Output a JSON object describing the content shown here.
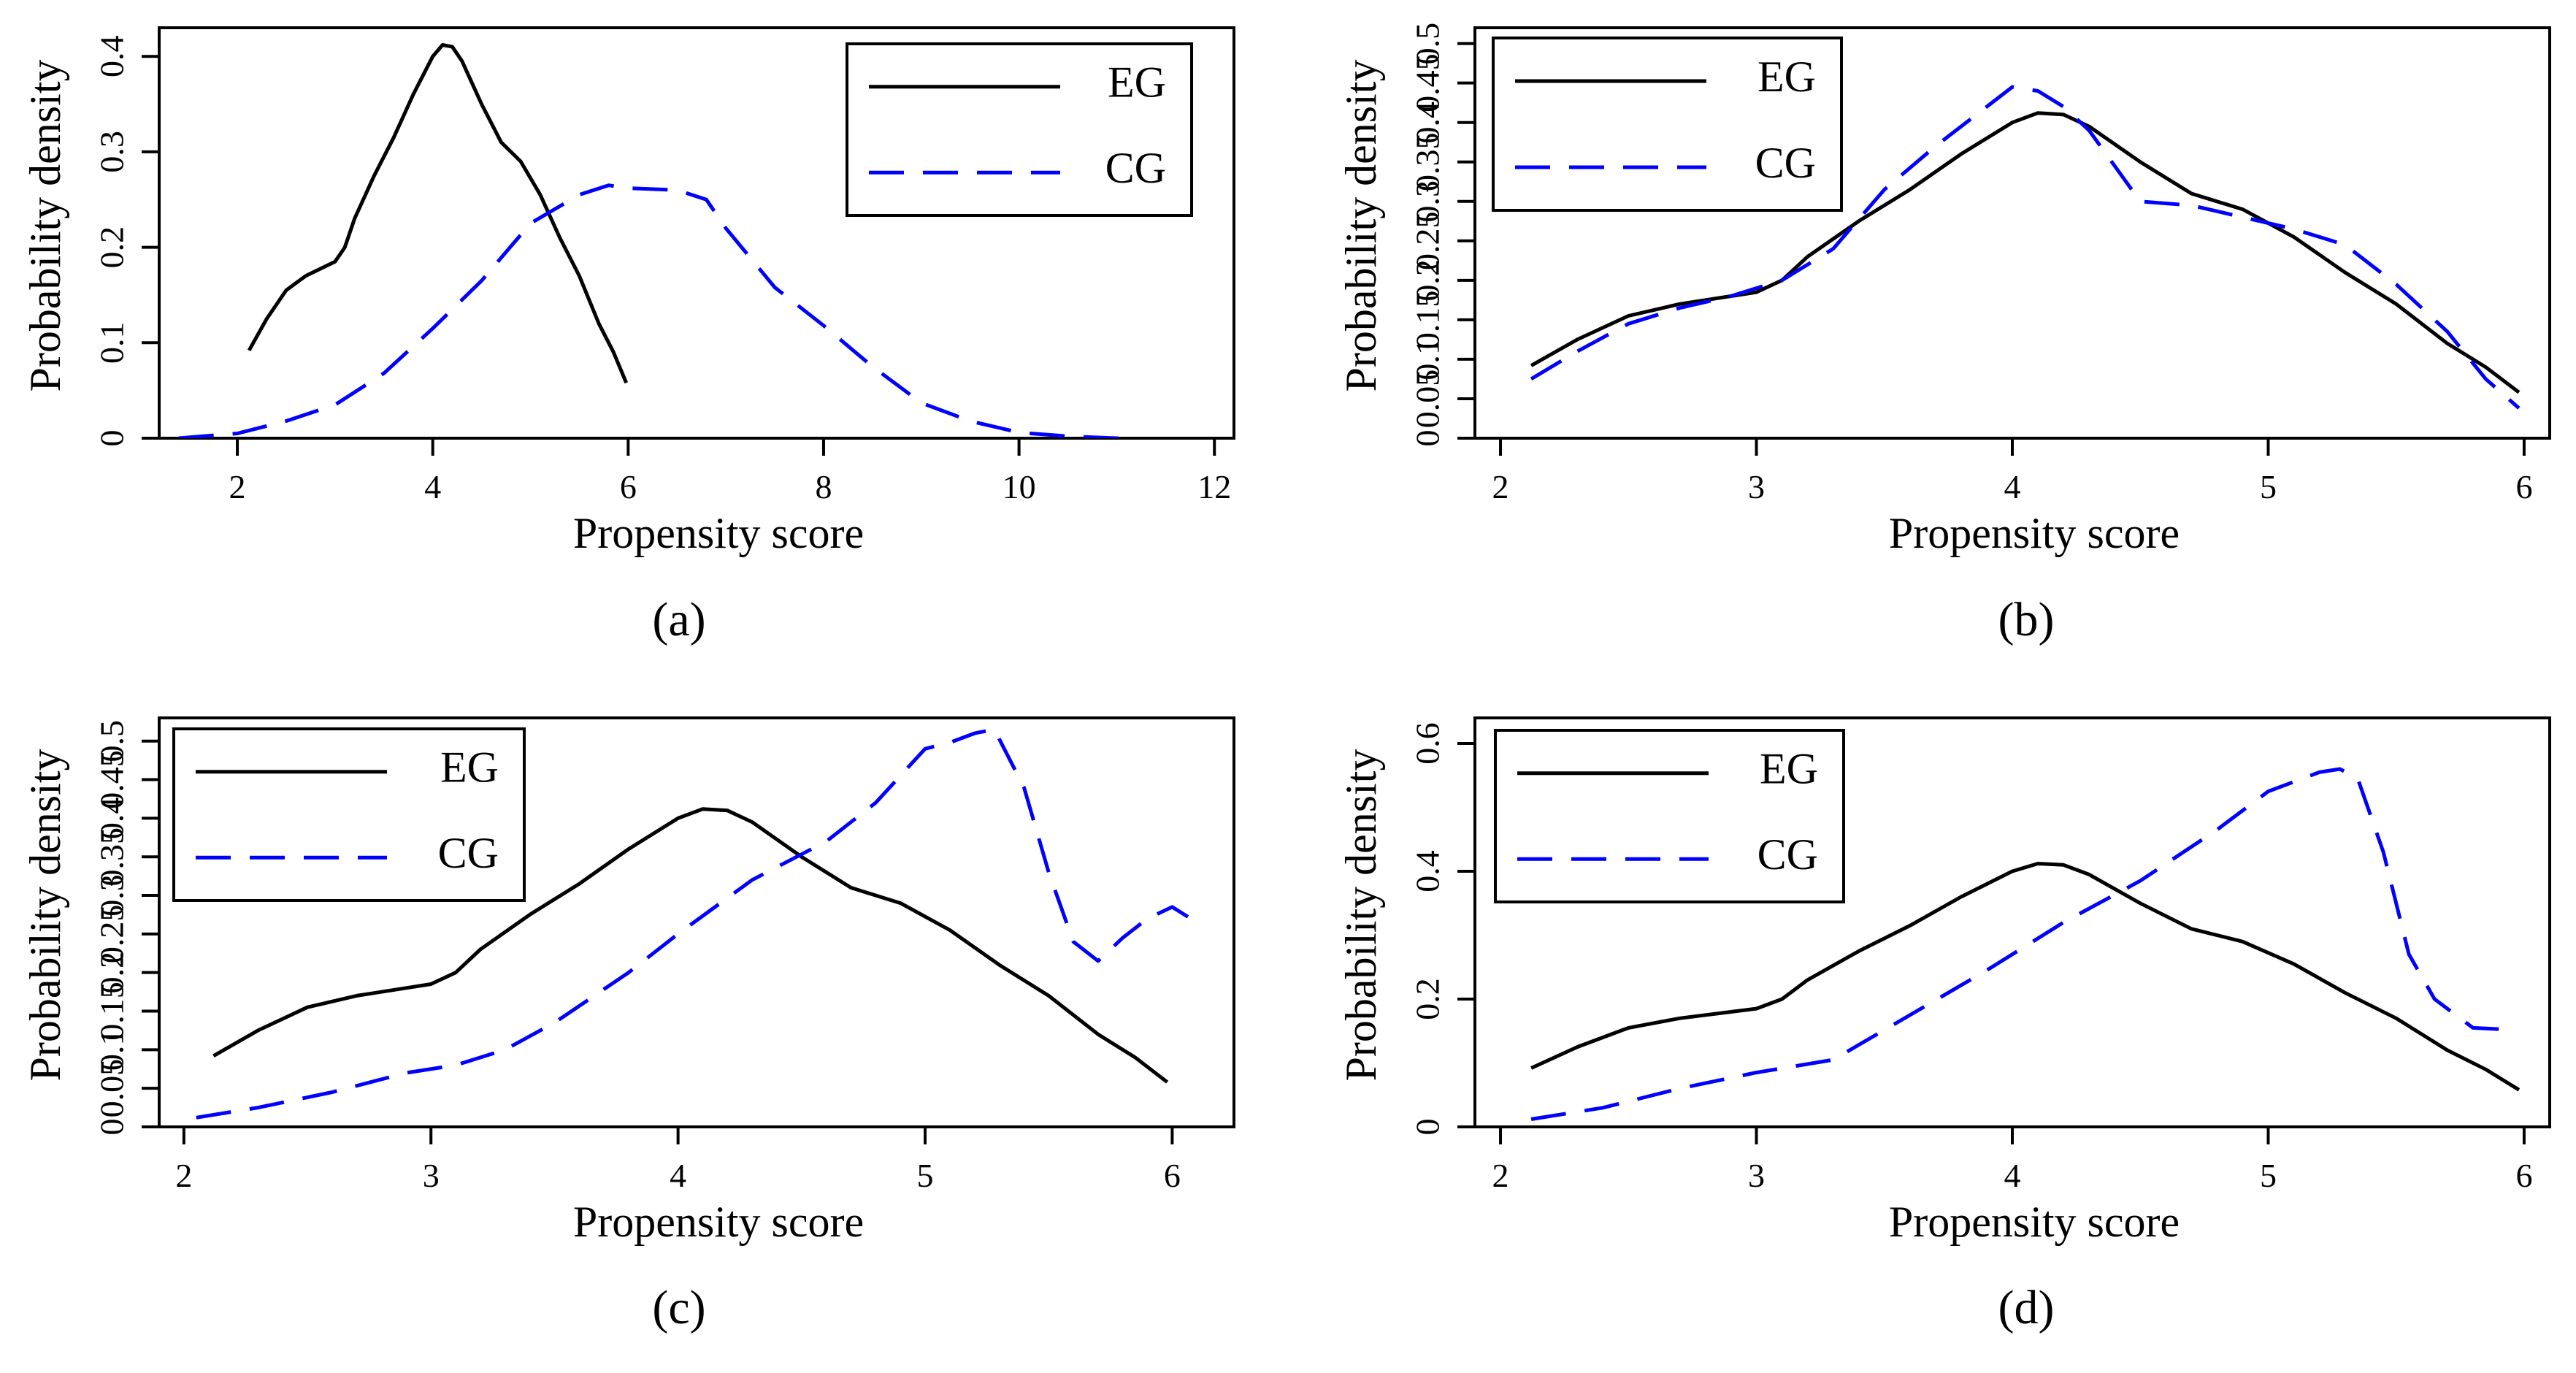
{
  "figure": {
    "line_colors": {
      "EG": "#000000",
      "CG": "#0000ff"
    },
    "line_styles": {
      "EG": "solid",
      "CG": "dashed"
    }
  },
  "chart_data": [
    {
      "type": "line",
      "panel_label": "(a)",
      "xlabel": "Propensity score",
      "ylabel": "Probability density",
      "xlim": [
        1.2,
        12.2
      ],
      "ylim": [
        0,
        0.43
      ],
      "xticks": [
        2,
        4,
        6,
        8,
        10,
        12
      ],
      "yticks": [
        0,
        0.1,
        0.2,
        0.3,
        0.4
      ],
      "ytick_labels": [
        "0",
        "0.1",
        "0.2",
        "0.3",
        "0.4"
      ],
      "legend_position": "top-right",
      "series": [
        {
          "name": "EG",
          "style": "solid",
          "x": [
            2.12,
            2.3,
            2.5,
            2.7,
            2.9,
            3.0,
            3.1,
            3.2,
            3.4,
            3.6,
            3.8,
            4.0,
            4.1,
            4.2,
            4.3,
            4.5,
            4.7,
            4.9,
            5.1,
            5.3,
            5.5,
            5.7,
            5.85,
            5.98
          ],
          "y": [
            0.092,
            0.125,
            0.155,
            0.17,
            0.18,
            0.185,
            0.2,
            0.23,
            0.275,
            0.315,
            0.36,
            0.4,
            0.412,
            0.41,
            0.395,
            0.35,
            0.31,
            0.29,
            0.255,
            0.21,
            0.17,
            0.12,
            0.09,
            0.058
          ]
        },
        {
          "name": "CG",
          "style": "dashed",
          "x": [
            1.4,
            2.0,
            2.5,
            3.0,
            3.5,
            4.0,
            4.5,
            5.0,
            5.5,
            5.8,
            6.0,
            6.5,
            6.8,
            7.0,
            7.5,
            8.0,
            8.5,
            9.0,
            9.5,
            10.0,
            10.5,
            11.0,
            11.1
          ],
          "y": [
            0.0,
            0.005,
            0.018,
            0.035,
            0.068,
            0.115,
            0.165,
            0.225,
            0.255,
            0.265,
            0.262,
            0.26,
            0.25,
            0.22,
            0.158,
            0.118,
            0.075,
            0.037,
            0.018,
            0.006,
            0.002,
            0.0,
            0.0
          ]
        }
      ]
    },
    {
      "type": "line",
      "panel_label": "(b)",
      "xlabel": "Propensity score",
      "ylabel": "Probability density",
      "xlim": [
        1.9,
        6.1
      ],
      "ylim": [
        0,
        0.52
      ],
      "xticks": [
        2,
        3,
        4,
        5,
        6
      ],
      "yticks": [
        0,
        0.05,
        0.1,
        0.15,
        0.2,
        0.25,
        0.3,
        0.35,
        0.4,
        0.45,
        0.5
      ],
      "ytick_labels": [
        "0",
        "0.05",
        "0.1",
        "0.15",
        "0.2",
        "0.25",
        "0.3",
        "0.35",
        "0.4",
        "0.45",
        "0.5"
      ],
      "legend_position": "top-left",
      "series": [
        {
          "name": "EG",
          "style": "solid",
          "x": [
            2.12,
            2.3,
            2.5,
            2.7,
            2.9,
            3.0,
            3.1,
            3.2,
            3.4,
            3.6,
            3.8,
            4.0,
            4.1,
            4.2,
            4.3,
            4.5,
            4.7,
            4.9,
            5.1,
            5.3,
            5.5,
            5.7,
            5.85,
            5.98
          ],
          "y": [
            0.092,
            0.125,
            0.155,
            0.17,
            0.18,
            0.185,
            0.2,
            0.23,
            0.275,
            0.315,
            0.36,
            0.4,
            0.412,
            0.41,
            0.395,
            0.35,
            0.31,
            0.29,
            0.255,
            0.21,
            0.17,
            0.12,
            0.09,
            0.058
          ]
        },
        {
          "name": "CG",
          "style": "dashed",
          "x": [
            2.12,
            2.3,
            2.5,
            2.7,
            2.9,
            3.1,
            3.3,
            3.5,
            3.7,
            3.9,
            4.0,
            4.1,
            4.2,
            4.3,
            4.5,
            4.7,
            4.9,
            5.1,
            5.3,
            5.5,
            5.7,
            5.85,
            5.98
          ],
          "y": [
            0.075,
            0.11,
            0.145,
            0.165,
            0.18,
            0.2,
            0.24,
            0.315,
            0.37,
            0.42,
            0.445,
            0.44,
            0.42,
            0.39,
            0.3,
            0.295,
            0.28,
            0.265,
            0.245,
            0.195,
            0.135,
            0.075,
            0.038
          ]
        }
      ]
    },
    {
      "type": "line",
      "panel_label": "(c)",
      "xlabel": "Propensity score",
      "ylabel": "Probability density",
      "xlim": [
        1.9,
        6.25
      ],
      "ylim": [
        0,
        0.53
      ],
      "xticks": [
        2,
        3,
        4,
        5,
        6
      ],
      "yticks": [
        0,
        0.05,
        0.1,
        0.15,
        0.2,
        0.25,
        0.3,
        0.35,
        0.4,
        0.45,
        0.5
      ],
      "ytick_labels": [
        "0",
        "0.05",
        "0.1",
        "0.15",
        "0.2",
        "0.25",
        "0.3",
        "0.35",
        "0.4",
        "0.45",
        "0.5"
      ],
      "legend_position": "top-left",
      "series": [
        {
          "name": "EG",
          "style": "solid",
          "x": [
            2.12,
            2.3,
            2.5,
            2.7,
            2.9,
            3.0,
            3.1,
            3.2,
            3.4,
            3.6,
            3.8,
            4.0,
            4.1,
            4.2,
            4.3,
            4.5,
            4.7,
            4.9,
            5.1,
            5.3,
            5.5,
            5.7,
            5.85,
            5.98
          ],
          "y": [
            0.092,
            0.125,
            0.155,
            0.17,
            0.18,
            0.185,
            0.2,
            0.23,
            0.275,
            0.315,
            0.36,
            0.4,
            0.412,
            0.41,
            0.395,
            0.35,
            0.31,
            0.29,
            0.255,
            0.21,
            0.17,
            0.12,
            0.09,
            0.058
          ]
        },
        {
          "name": "CG",
          "style": "dashed",
          "x": [
            2.05,
            2.3,
            2.6,
            2.9,
            3.1,
            3.3,
            3.5,
            3.8,
            4.0,
            4.3,
            4.6,
            4.8,
            5.0,
            5.1,
            5.2,
            5.28,
            5.4,
            5.5,
            5.6,
            5.7,
            5.8,
            5.9,
            6.0,
            6.1
          ],
          "y": [
            0.012,
            0.025,
            0.045,
            0.07,
            0.08,
            0.1,
            0.135,
            0.2,
            0.25,
            0.32,
            0.37,
            0.42,
            0.49,
            0.498,
            0.51,
            0.515,
            0.44,
            0.33,
            0.24,
            0.215,
            0.245,
            0.27,
            0.285,
            0.265
          ]
        }
      ]
    },
    {
      "type": "line",
      "panel_label": "(d)",
      "xlabel": "Propensity score",
      "ylabel": "Probability density",
      "xlim": [
        1.9,
        6.1
      ],
      "ylim": [
        0,
        0.64
      ],
      "xticks": [
        2,
        3,
        4,
        5,
        6
      ],
      "yticks": [
        0,
        0.2,
        0.4,
        0.6
      ],
      "ytick_labels": [
        "0",
        "0.2",
        "0.4",
        "0.6"
      ],
      "legend_position": "top-left",
      "series": [
        {
          "name": "EG",
          "style": "solid",
          "x": [
            2.12,
            2.3,
            2.5,
            2.7,
            2.9,
            3.0,
            3.1,
            3.2,
            3.4,
            3.6,
            3.8,
            4.0,
            4.1,
            4.2,
            4.3,
            4.5,
            4.7,
            4.9,
            5.1,
            5.3,
            5.5,
            5.7,
            5.85,
            5.98
          ],
          "y": [
            0.092,
            0.125,
            0.155,
            0.17,
            0.18,
            0.185,
            0.2,
            0.23,
            0.275,
            0.315,
            0.36,
            0.4,
            0.412,
            0.41,
            0.395,
            0.35,
            0.31,
            0.29,
            0.255,
            0.21,
            0.17,
            0.12,
            0.09,
            0.058
          ]
        },
        {
          "name": "CG",
          "style": "dashed",
          "x": [
            2.12,
            2.4,
            2.7,
            3.0,
            3.3,
            3.6,
            3.9,
            4.2,
            4.5,
            4.8,
            5.0,
            5.1,
            5.2,
            5.28,
            5.35,
            5.45,
            5.55,
            5.65,
            5.8,
            5.95
          ],
          "y": [
            0.012,
            0.03,
            0.06,
            0.085,
            0.105,
            0.175,
            0.245,
            0.32,
            0.385,
            0.465,
            0.525,
            0.54,
            0.555,
            0.56,
            0.545,
            0.43,
            0.27,
            0.2,
            0.155,
            0.152
          ]
        }
      ]
    }
  ]
}
